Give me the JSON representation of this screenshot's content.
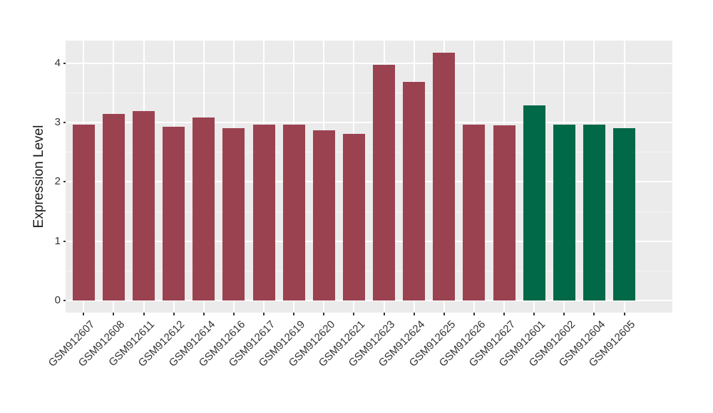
{
  "chart_data": {
    "type": "bar",
    "title": "",
    "xlabel": "",
    "ylabel": "Expression Level",
    "yticks": [
      0,
      1,
      2,
      3,
      4
    ],
    "minor_ticks": [
      0.5,
      1.5,
      2.5,
      3.5
    ],
    "ylim": [
      -0.21,
      4.39
    ],
    "legend_position": "none",
    "panel_bg": "#EBEBEB",
    "grid_color": "#FFFFFF",
    "axis_text_color": "#333333",
    "categories": [
      "GSM912607",
      "GSM912608",
      "GSM912611",
      "GSM912612",
      "GSM912614",
      "GSM912616",
      "GSM912617",
      "GSM912619",
      "GSM912620",
      "GSM912621",
      "GSM912623",
      "GSM912624",
      "GSM912625",
      "GSM912626",
      "GSM912627",
      "GSM912601",
      "GSM912602",
      "GSM912604",
      "GSM912605"
    ],
    "values": [
      2.96,
      3.15,
      3.19,
      2.93,
      3.08,
      2.9,
      2.96,
      2.97,
      2.87,
      2.81,
      3.97,
      3.68,
      4.18,
      2.96,
      2.95,
      3.29,
      2.97,
      2.97,
      2.9
    ],
    "groups": [
      "group1",
      "group1",
      "group1",
      "group1",
      "group1",
      "group1",
      "group1",
      "group1",
      "group1",
      "group1",
      "group1",
      "group1",
      "group1",
      "group1",
      "group1",
      "group2",
      "group2",
      "group2",
      "group2"
    ],
    "group_colors": {
      "group1": "#9B4250",
      "group2": "#016848"
    }
  }
}
